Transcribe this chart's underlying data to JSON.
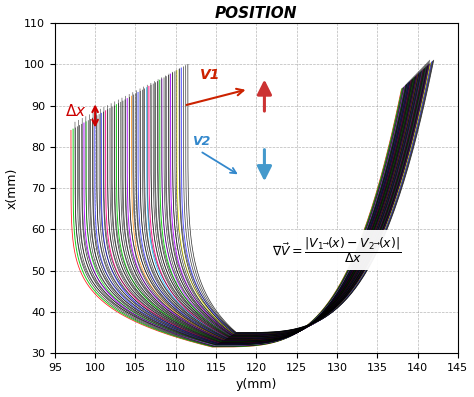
{
  "title": "POSITION",
  "xlabel": "y(mm)",
  "ylabel": "x(mm)",
  "xlim": [
    95,
    145
  ],
  "ylim": [
    30,
    110
  ],
  "xticks": [
    95,
    100,
    105,
    110,
    115,
    120,
    125,
    130,
    135,
    140,
    145
  ],
  "yticks": [
    30,
    40,
    50,
    60,
    70,
    80,
    90,
    100,
    110
  ],
  "bg_color": "#ffffff",
  "grid_color": "#888888",
  "delta_x_color": "#cc0000",
  "v1_color": "#cc2200",
  "v2_color": "#3388cc",
  "arrow_up_color": "#cc3333",
  "arrow_down_color": "#4499cc"
}
